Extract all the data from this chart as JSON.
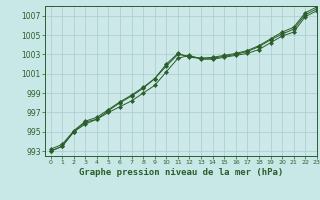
{
  "xlabel": "Graphe pression niveau de la mer (hPa)",
  "bg_color": "#c8e8e8",
  "plot_bg_color": "#cce8e8",
  "grid_color": "#a8cccc",
  "line_color": "#2a5e2a",
  "xlim": [
    -0.5,
    23
  ],
  "ylim": [
    992.5,
    1008
  ],
  "yticks": [
    993,
    995,
    997,
    999,
    1001,
    1003,
    1005,
    1007
  ],
  "xticks": [
    0,
    1,
    2,
    3,
    4,
    5,
    6,
    7,
    8,
    9,
    10,
    11,
    12,
    13,
    14,
    15,
    16,
    17,
    18,
    19,
    20,
    21,
    22,
    23
  ],
  "series1": [
    993.0,
    993.5,
    995.0,
    995.8,
    996.3,
    997.0,
    997.6,
    998.2,
    999.0,
    999.8,
    1001.2,
    1002.6,
    1002.9,
    1002.5,
    1002.5,
    1002.7,
    1002.9,
    1003.1,
    1003.5,
    1004.2,
    1004.9,
    1005.3,
    1006.9,
    1007.5
  ],
  "series2": [
    993.2,
    993.7,
    995.1,
    996.1,
    996.5,
    997.3,
    998.1,
    998.8,
    999.6,
    1000.5,
    1001.8,
    1003.0,
    1002.8,
    1002.6,
    1002.6,
    1002.8,
    1003.0,
    1003.3,
    1003.8,
    1004.5,
    1005.1,
    1005.6,
    1007.1,
    1007.7
  ],
  "series3": [
    993.0,
    993.5,
    995.0,
    996.0,
    996.3,
    997.2,
    998.0,
    998.7,
    999.5,
    1000.5,
    1002.0,
    1003.1,
    1002.7,
    1002.6,
    1002.7,
    1002.9,
    1003.1,
    1003.4,
    1003.9,
    1004.6,
    1005.3,
    1005.8,
    1007.3,
    1007.9
  ]
}
